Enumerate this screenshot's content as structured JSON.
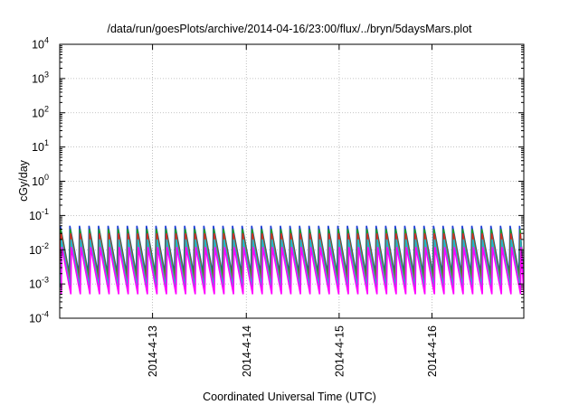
{
  "chart_data": {
    "type": "line",
    "title": "/data/run/goesPlots/archive/2014-04-16/23:00/flux/../bryn/5daysMars.plot",
    "xlabel": "Coordinated Universal Time (UTC)",
    "ylabel": "cGy/day",
    "y_scale": "log",
    "ylim": [
      0.0001,
      10000
    ],
    "xlim": [
      0,
      4.85
    ],
    "x_ticks": [
      {
        "value": 0.97,
        "label": "2014-4-13"
      },
      {
        "value": 1.95,
        "label": "2014-4-14"
      },
      {
        "value": 2.92,
        "label": "2014-4-15"
      },
      {
        "value": 3.89,
        "label": "2014-4-16"
      }
    ],
    "y_ticks": [
      {
        "value": 0.0001,
        "mantissa": "10",
        "exp": "-4"
      },
      {
        "value": 0.001,
        "mantissa": "10",
        "exp": "-3"
      },
      {
        "value": 0.01,
        "mantissa": "10",
        "exp": "-2"
      },
      {
        "value": 0.1,
        "mantissa": "10",
        "exp": "-1"
      },
      {
        "value": 1,
        "mantissa": "10",
        "exp": "0"
      },
      {
        "value": 10,
        "mantissa": "10",
        "exp": "1"
      },
      {
        "value": 100,
        "mantissa": "10",
        "exp": "2"
      },
      {
        "value": 1000,
        "mantissa": "10",
        "exp": "3"
      },
      {
        "value": 10000,
        "mantissa": "10",
        "exp": "4"
      }
    ],
    "grid": true,
    "oscillation": {
      "period_days": 0.1,
      "series": [
        {
          "color": "#1f3fd6",
          "max": 0.05,
          "min": 0.002
        },
        {
          "color": "#1ea020",
          "max": 0.04,
          "min": 0.0015
        },
        {
          "color": "#d62828",
          "max": 0.03,
          "min": 0.001
        },
        {
          "color": "#1fb8c8",
          "max": 0.02,
          "min": 0.0008
        },
        {
          "color": "#ff00ff",
          "max": 0.012,
          "min": 0.0005
        }
      ]
    }
  }
}
